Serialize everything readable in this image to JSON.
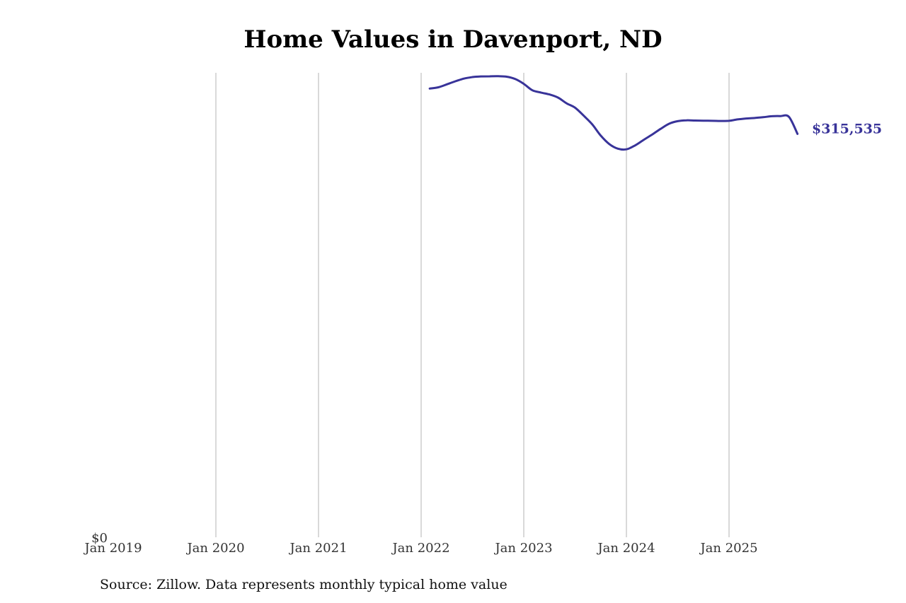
{
  "chart_data": {
    "type": "line",
    "title": "Home Values in Davenport, ND",
    "xlabel": "",
    "ylabel": "",
    "x_ticks": [
      "Jan 2019",
      "Jan 2020",
      "Jan 2021",
      "Jan 2022",
      "Jan 2023",
      "Jan 2024",
      "Jan 2025"
    ],
    "y_ticks": [
      "$0"
    ],
    "ylim": [
      0,
      365000
    ],
    "grid": "vertical",
    "end_label": "$315,535",
    "line_color": "#383399",
    "series": [
      {
        "x": [
          "2022-02",
          "2022-03",
          "2022-04",
          "2022-05",
          "2022-06",
          "2022-07",
          "2022-08",
          "2022-09",
          "2022-10",
          "2022-11",
          "2022-12",
          "2023-01",
          "2023-02",
          "2023-03",
          "2023-04",
          "2023-05",
          "2023-06",
          "2023-07",
          "2023-08",
          "2023-09",
          "2023-10",
          "2023-11",
          "2023-12",
          "2024-01",
          "2024-02",
          "2024-03",
          "2024-04",
          "2024-05",
          "2024-06",
          "2024-07",
          "2024-08",
          "2024-09",
          "2024-10",
          "2024-11",
          "2024-12",
          "2025-01",
          "2025-02",
          "2025-03",
          "2025-04",
          "2025-05",
          "2025-06",
          "2025-07",
          "2025-08",
          "2025-09"
        ],
        "values": [
          351000,
          352000,
          354300,
          356700,
          358800,
          360000,
          360500,
          360600,
          360700,
          360300,
          358500,
          354700,
          349700,
          347900,
          346400,
          344000,
          339500,
          336000,
          329800,
          323000,
          314200,
          307600,
          304000,
          303500,
          306500,
          310800,
          315000,
          319500,
          323500,
          325500,
          326200,
          326000,
          325900,
          325800,
          325700,
          325800,
          326900,
          327600,
          328000,
          328600,
          329400,
          329500,
          328900,
          315535
        ]
      }
    ]
  },
  "source": "Source: Zillow. Data represents monthly typical home value"
}
